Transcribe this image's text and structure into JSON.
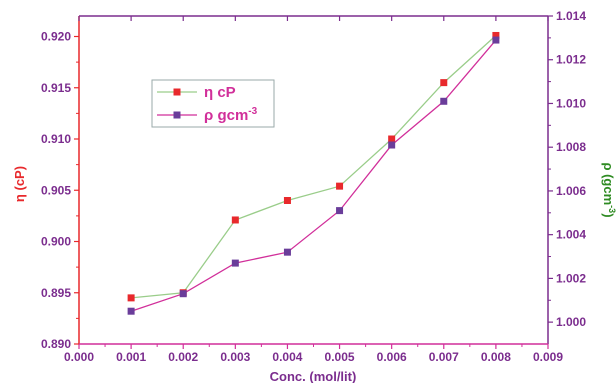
{
  "chart_data": {
    "type": "line",
    "xlabel": "Conc. (mol/lit)",
    "ylabel_left": "η (cP)",
    "ylabel_right_main": "ρ (gcm",
    "ylabel_right_sup": "-3",
    "ylabel_right_close": ")",
    "xlim": [
      0.0,
      0.009
    ],
    "ylim_left": [
      0.89,
      0.922
    ],
    "ylim_right": [
      0.999,
      1.014
    ],
    "x_ticks": [
      "0.000",
      "0.001",
      "0.002",
      "0.003",
      "0.004",
      "0.005",
      "0.006",
      "0.007",
      "0.008",
      "0.009"
    ],
    "y_left_ticks": [
      "0.890",
      "0.895",
      "0.900",
      "0.905",
      "0.910",
      "0.915",
      "0.920"
    ],
    "y_right_ticks": [
      "1.000",
      "1.002",
      "1.004",
      "1.006",
      "1.008",
      "1.010",
      "1.012",
      "1.014"
    ],
    "grid": false,
    "legend_position": "upper-left",
    "series": [
      {
        "name": "η  cP",
        "axis": "left",
        "line_color": "#9acd8a",
        "marker_color": "#e8292c",
        "x": [
          0.001,
          0.002,
          0.003,
          0.004,
          0.005,
          0.006,
          0.007,
          0.008
        ],
        "values": [
          0.8945,
          0.895,
          0.9021,
          0.904,
          0.9054,
          0.91,
          0.9155,
          0.9201
        ]
      },
      {
        "name_main": "ρ gcm",
        "name_sup": "-3",
        "axis": "right",
        "line_color": "#d12f9a",
        "marker_color": "#6a3d9a",
        "x": [
          0.001,
          0.002,
          0.003,
          0.004,
          0.005,
          0.006,
          0.007,
          0.008
        ],
        "values": [
          1.0005,
          1.0013,
          1.0027,
          1.0032,
          1.0051,
          1.0081,
          1.0101,
          1.0129
        ]
      }
    ],
    "colors": {
      "left_axis": "#e8292c",
      "right_axis": "#7b2d8e",
      "right_axis_label": "#2e8b22",
      "frame": "#7b2d8e",
      "x_axis": "#d12f9a",
      "x_tick_text": "#7b2d8e",
      "legend_text": "#d12f9a"
    }
  }
}
